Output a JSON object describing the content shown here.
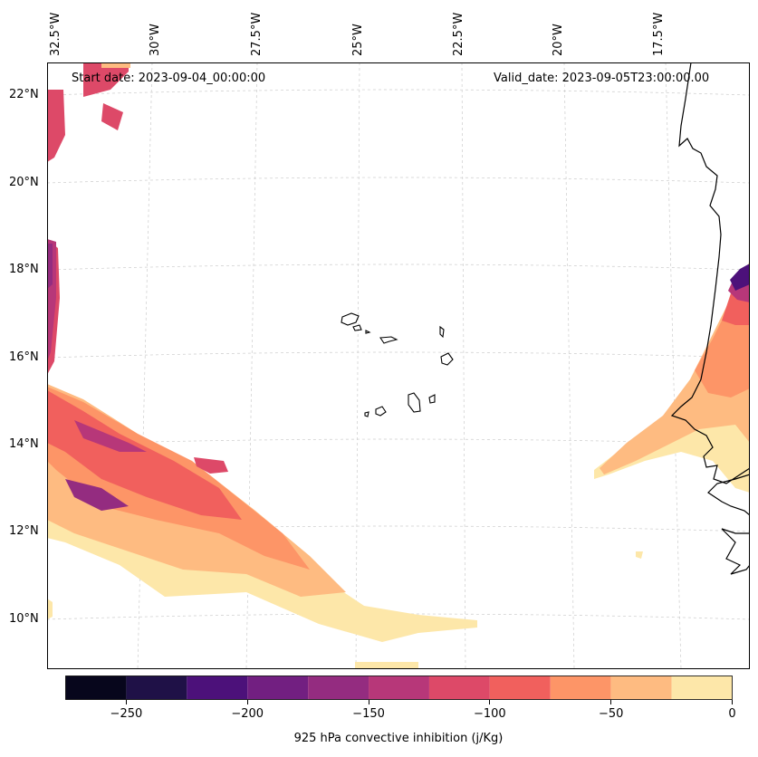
{
  "map": {
    "start_date": "Start date: 2023-09-04_00:00:00",
    "valid_date": "Valid_date: 2023-09-05T23:00:00.00",
    "lat_labels": [
      "22°N",
      "20°N",
      "18°N",
      "16°N",
      "14°N",
      "12°N",
      "10°N"
    ],
    "lon_labels": [
      "32.5°W",
      "30°W",
      "27.5°W",
      "25°W",
      "22.5°W",
      "20°W",
      "17.5°W"
    ],
    "islands": "Cape Verde islands",
    "coastline": "West African coast"
  },
  "colorbar": {
    "label": "925 hPa convective inhibition (j/Kg)",
    "ticks": [
      "−250",
      "−200",
      "−150",
      "−100",
      "−50",
      "0"
    ],
    "levels": [
      -275,
      -250,
      -225,
      -200,
      -175,
      -150,
      -125,
      -100,
      -75,
      -50,
      -25,
      0
    ],
    "colors": [
      "#07061c",
      "#1f1147",
      "#4c117a",
      "#721f81",
      "#942c80",
      "#b73779",
      "#dd4968",
      "#f1605d",
      "#fd9567",
      "#febb81",
      "#fde7a9"
    ]
  }
}
